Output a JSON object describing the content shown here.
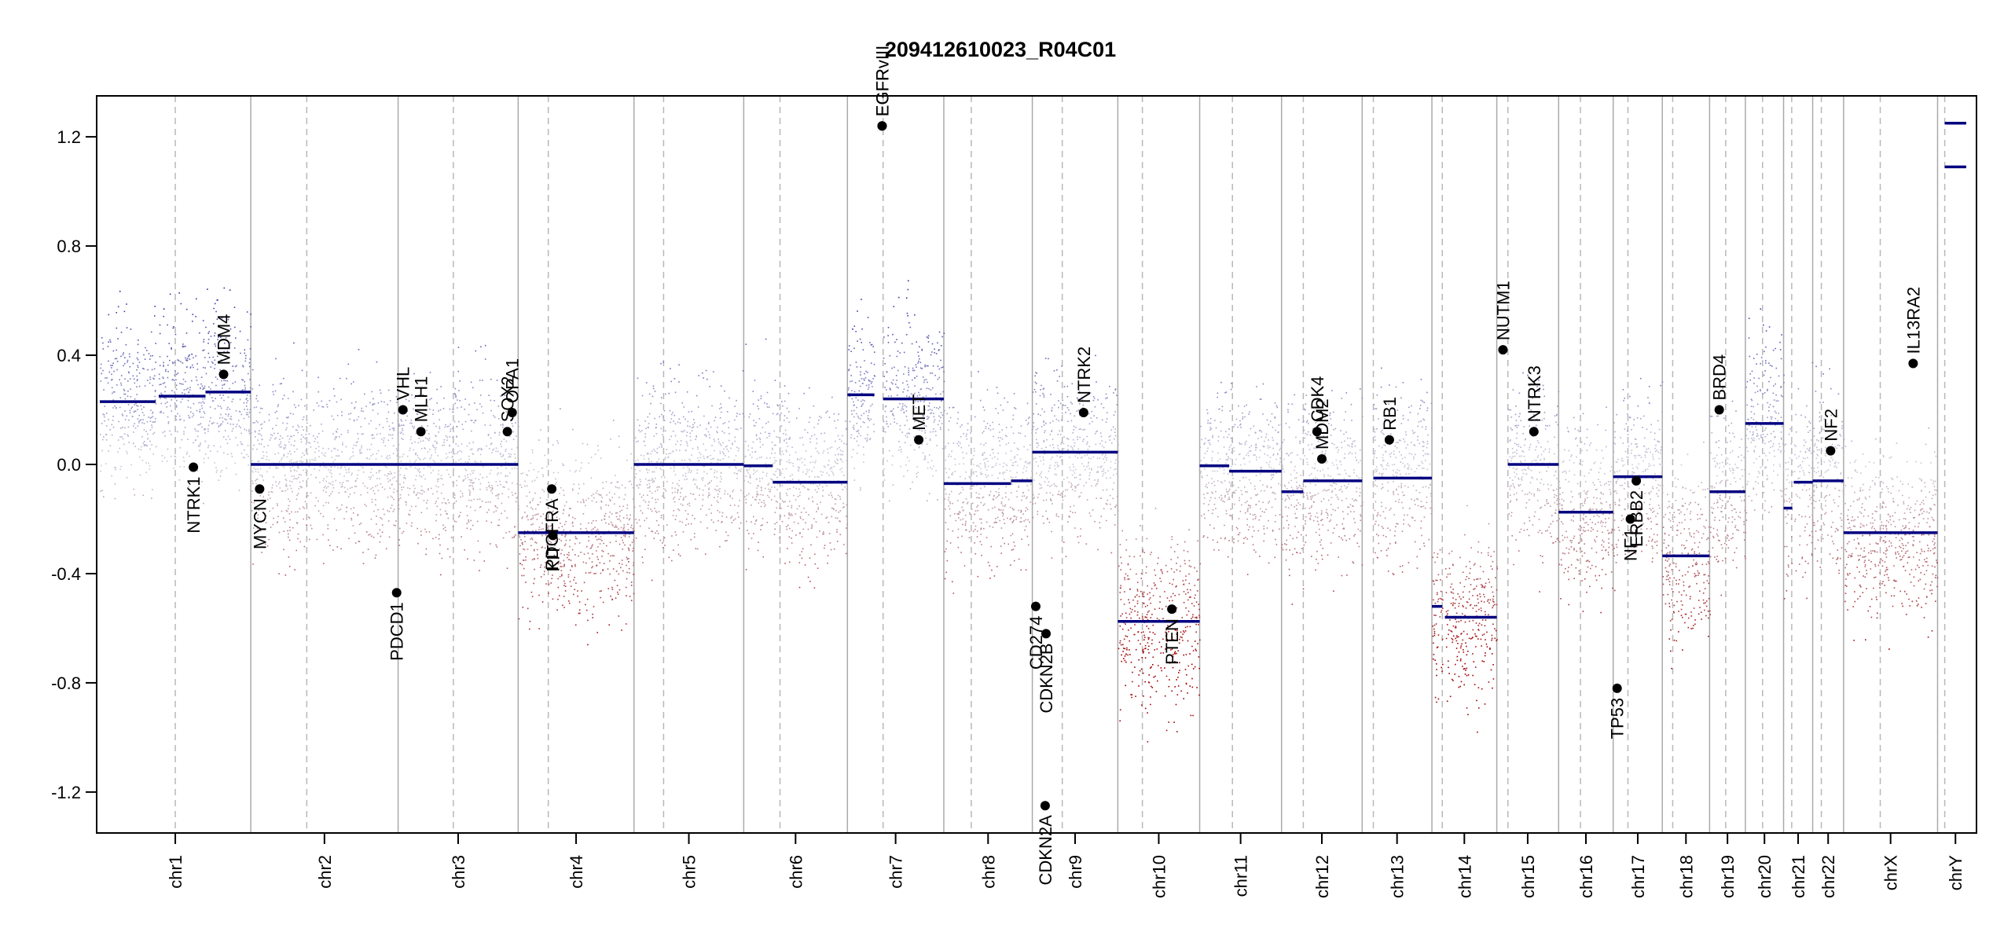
{
  "chart_data": {
    "type": "scatter",
    "title": "209412610023_R04C01",
    "xlabel": "",
    "ylabel": "",
    "ylim": [
      -1.35,
      1.35
    ],
    "y_ticks": [
      -1.2,
      -0.8,
      -0.4,
      0.0,
      0.4,
      0.8,
      1.2
    ],
    "y_tick_labels": [
      "-1.2",
      "-0.8",
      "-0.4",
      "0.0",
      "0.4",
      "0.8",
      "1.2"
    ],
    "grid": false,
    "point_color_scale": {
      "positive": "#1f1fa0",
      "neutral": "#c8c8d8",
      "negative": "#a00000"
    },
    "segment_color": "#000080",
    "gene_point_color": "#000000",
    "chromosomes": [
      {
        "name": "chr1",
        "length": 249,
        "centromere": 0.5
      },
      {
        "name": "chr2",
        "length": 243,
        "centromere": 0.38
      },
      {
        "name": "chr3",
        "length": 198,
        "centromere": 0.46
      },
      {
        "name": "chr4",
        "length": 191,
        "centromere": 0.26
      },
      {
        "name": "chr5",
        "length": 181,
        "centromere": 0.27
      },
      {
        "name": "chr6",
        "length": 171,
        "centromere": 0.35
      },
      {
        "name": "chr7",
        "length": 159,
        "centromere": 0.37
      },
      {
        "name": "chr8",
        "length": 146,
        "centromere": 0.31
      },
      {
        "name": "chr9",
        "length": 141,
        "centromere": 0.35
      },
      {
        "name": "chr10",
        "length": 135,
        "centromere": 0.3
      },
      {
        "name": "chr11",
        "length": 135,
        "centromere": 0.4
      },
      {
        "name": "chr12",
        "length": 133,
        "centromere": 0.27
      },
      {
        "name": "chr13",
        "length": 115,
        "centromere": 0.16
      },
      {
        "name": "chr14",
        "length": 107,
        "centromere": 0.16
      },
      {
        "name": "chr15",
        "length": 102,
        "centromere": 0.18
      },
      {
        "name": "chr16",
        "length": 90,
        "centromere": 0.4
      },
      {
        "name": "chr17",
        "length": 81,
        "centromere": 0.3
      },
      {
        "name": "chr18",
        "length": 78,
        "centromere": 0.22
      },
      {
        "name": "chr19",
        "length": 59,
        "centromere": 0.45
      },
      {
        "name": "chr20",
        "length": 63,
        "centromere": 0.45
      },
      {
        "name": "chr21",
        "length": 48,
        "centromere": 0.28
      },
      {
        "name": "chr22",
        "length": 51,
        "centromere": 0.28
      },
      {
        "name": "chrX",
        "length": 155,
        "centromere": 0.39
      },
      {
        "name": "chrY",
        "length": 59,
        "centromere": 0.2
      }
    ],
    "segments": [
      {
        "chr": "chr1",
        "start": 0.0,
        "end": 0.37,
        "value": 0.23
      },
      {
        "chr": "chr1",
        "start": 0.39,
        "end": 0.7,
        "value": 0.25
      },
      {
        "chr": "chr1",
        "start": 0.7,
        "end": 1.0,
        "value": 0.265
      },
      {
        "chr": "chr2",
        "start": 0.0,
        "end": 1.0,
        "value": 0.0
      },
      {
        "chr": "chr3",
        "start": 0.0,
        "end": 1.0,
        "value": 0.0
      },
      {
        "chr": "chr4",
        "start": 0.0,
        "end": 1.0,
        "value": -0.25
      },
      {
        "chr": "chr5",
        "start": 0.0,
        "end": 1.0,
        "value": 0.0
      },
      {
        "chr": "chr6",
        "start": 0.0,
        "end": 0.28,
        "value": -0.005
      },
      {
        "chr": "chr6",
        "start": 0.28,
        "end": 1.0,
        "value": -0.065
      },
      {
        "chr": "chr7",
        "start": 0.0,
        "end": 0.28,
        "value": 0.255
      },
      {
        "chr": "chr7",
        "start": 0.37,
        "end": 1.0,
        "value": 0.24
      },
      {
        "chr": "chr8",
        "start": 0.0,
        "end": 0.76,
        "value": -0.07
      },
      {
        "chr": "chr8",
        "start": 0.76,
        "end": 1.0,
        "value": -0.06
      },
      {
        "chr": "chr9",
        "start": 0.0,
        "end": 1.0,
        "value": 0.045
      },
      {
        "chr": "chr10",
        "start": 0.0,
        "end": 1.0,
        "value": -0.575
      },
      {
        "chr": "chr11",
        "start": 0.0,
        "end": 0.36,
        "value": -0.005
      },
      {
        "chr": "chr11",
        "start": 0.36,
        "end": 1.0,
        "value": -0.025
      },
      {
        "chr": "chr12",
        "start": 0.0,
        "end": 0.27,
        "value": -0.1
      },
      {
        "chr": "chr12",
        "start": 0.27,
        "end": 1.0,
        "value": -0.06
      },
      {
        "chr": "chr13",
        "start": 0.16,
        "end": 1.0,
        "value": -0.05
      },
      {
        "chr": "chr14",
        "start": 0.0,
        "end": 0.16,
        "value": -0.52
      },
      {
        "chr": "chr14",
        "start": 0.2,
        "end": 1.0,
        "value": -0.56
      },
      {
        "chr": "chr15",
        "start": 0.18,
        "end": 1.0,
        "value": 0.0
      },
      {
        "chr": "chr16",
        "start": 0.0,
        "end": 1.0,
        "value": -0.175
      },
      {
        "chr": "chr17",
        "start": 0.0,
        "end": 1.0,
        "value": -0.045
      },
      {
        "chr": "chr18",
        "start": 0.0,
        "end": 1.0,
        "value": -0.335
      },
      {
        "chr": "chr19",
        "start": 0.0,
        "end": 1.0,
        "value": -0.1
      },
      {
        "chr": "chr20",
        "start": 0.0,
        "end": 1.0,
        "value": 0.15
      },
      {
        "chr": "chr21",
        "start": 0.0,
        "end": 0.3,
        "value": -0.16
      },
      {
        "chr": "chr21",
        "start": 0.35,
        "end": 1.0,
        "value": -0.065
      },
      {
        "chr": "chr22",
        "start": 0.0,
        "end": 1.0,
        "value": -0.06
      },
      {
        "chr": "chrX",
        "start": 0.0,
        "end": 1.0,
        "value": -0.25
      },
      {
        "chr": "chrY",
        "start": 0.2,
        "end": 0.8,
        "value": 1.09
      },
      {
        "chr": "chrY",
        "start": 0.2,
        "end": 0.8,
        "value": 1.25
      }
    ],
    "genes": [
      {
        "name": "NTRK1",
        "chr": "chr1",
        "pos": 0.62,
        "value": -0.01
      },
      {
        "name": "MDM4",
        "chr": "chr1",
        "pos": 0.82,
        "value": 0.33
      },
      {
        "name": "MYCN",
        "chr": "chr2",
        "pos": 0.06,
        "value": -0.09
      },
      {
        "name": "PDCD1",
        "chr": "chr2",
        "pos": 0.99,
        "value": -0.47
      },
      {
        "name": "VHL",
        "chr": "chr3",
        "pos": 0.04,
        "value": 0.2
      },
      {
        "name": "MLH1",
        "chr": "chr3",
        "pos": 0.19,
        "value": 0.12
      },
      {
        "name": "SOX2",
        "chr": "chr3",
        "pos": 0.91,
        "value": 0.12
      },
      {
        "name": "OPA1",
        "chr": "chr3",
        "pos": 0.95,
        "value": 0.19
      },
      {
        "name": "PDGFRA",
        "chr": "chr4",
        "pos": 0.29,
        "value": -0.09
      },
      {
        "name": "KIT",
        "chr": "chr4",
        "pos": 0.3,
        "value": -0.26
      },
      {
        "name": "EGFR",
        "chr": "chr7",
        "pos": 0.36,
        "value": 1.24
      },
      {
        "name": "EGFRvIII",
        "chr": "chr7",
        "pos": 0.36,
        "value": 1.24
      },
      {
        "name": "MET",
        "chr": "chr7",
        "pos": 0.74,
        "value": 0.09
      },
      {
        "name": "CD274",
        "chr": "chr9",
        "pos": 0.04,
        "value": -0.52
      },
      {
        "name": "CDKN2A",
        "chr": "chr9",
        "pos": 0.15,
        "value": -1.25
      },
      {
        "name": "CDKN2B",
        "chr": "chr9",
        "pos": 0.16,
        "value": -0.62
      },
      {
        "name": "NTRK2",
        "chr": "chr9",
        "pos": 0.6,
        "value": 0.19
      },
      {
        "name": "PTEN",
        "chr": "chr10",
        "pos": 0.66,
        "value": -0.53
      },
      {
        "name": "CDK4",
        "chr": "chr12",
        "pos": 0.44,
        "value": 0.12
      },
      {
        "name": "MDM2",
        "chr": "chr12",
        "pos": 0.5,
        "value": 0.02
      },
      {
        "name": "RB1",
        "chr": "chr13",
        "pos": 0.39,
        "value": 0.09
      },
      {
        "name": "NUTM1",
        "chr": "chr15",
        "pos": 0.1,
        "value": 0.42
      },
      {
        "name": "NTRK3",
        "chr": "chr15",
        "pos": 0.6,
        "value": 0.12
      },
      {
        "name": "TP53",
        "chr": "chr17",
        "pos": 0.08,
        "value": -0.82
      },
      {
        "name": "NF1",
        "chr": "chr17",
        "pos": 0.35,
        "value": -0.2
      },
      {
        "name": "ERBB2",
        "chr": "chr17",
        "pos": 0.47,
        "value": -0.06
      },
      {
        "name": "BRD4",
        "chr": "chr19",
        "pos": 0.27,
        "value": 0.2
      },
      {
        "name": "NF2",
        "chr": "chr22",
        "pos": 0.58,
        "value": 0.05
      },
      {
        "name": "IL13RA2",
        "chr": "chrX",
        "pos": 0.74,
        "value": 0.37
      }
    ]
  }
}
